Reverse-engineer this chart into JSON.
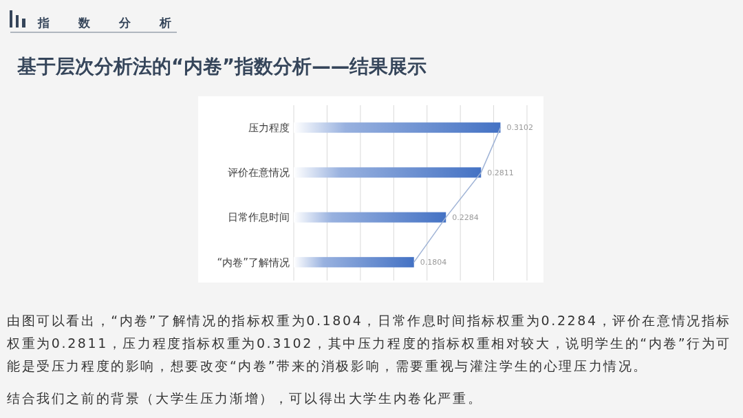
{
  "chart_data": {
    "type": "bar",
    "orientation": "horizontal",
    "title": "基于层次分析法的“内卷”指数分析——结果展示",
    "annotations": [
      "指数分析",
      "由图可以看出，“内卷”了解情况的指标权重为0.1804，日常作息时间指标权重为0.2284，评价在意情况指标权重为0.2811，压力程度指标权重为0.3102，其中压力程度的指标权重相对较大，说明学生的“内卷”行为可能是受压力程度的影响，想要改变“内卷”带来的消极影响，需要重视与灌注学生的心理压力情况。",
      "结合我们之前的背景（大学生压力渐增），可以得出大学生内卷化严重。"
    ],
    "categories": [
      "压力程度",
      "评价在意情况",
      "日常作息时间",
      "“内卷”了解情况"
    ],
    "series": [
      {
        "type": "bar",
        "color": "#4472c4",
        "values": [
          0.3102,
          0.2811,
          0.2284,
          0.1804
        ],
        "value_labels": [
          "0.3102",
          "0.2811",
          "0.2284",
          "0.1804"
        ]
      },
      {
        "type": "line",
        "color": "#9fb3d6",
        "values": [
          0.3102,
          0.2811,
          0.2284,
          0.1804
        ]
      }
    ],
    "xlim": [
      0,
      0.35
    ],
    "xticks": [
      {
        "value": 0,
        "label": null
      },
      {
        "value": 0.05,
        "label": null
      },
      {
        "value": 0.1,
        "label": null
      },
      {
        "value": 0.15,
        "label": null
      },
      {
        "value": 0.2,
        "label": null
      },
      {
        "value": 0.25,
        "label": null
      },
      {
        "value": 0.3,
        "label": null
      },
      {
        "value": 0.35,
        "label": null
      }
    ],
    "grid": "x",
    "tick_labels": "y"
  }
}
